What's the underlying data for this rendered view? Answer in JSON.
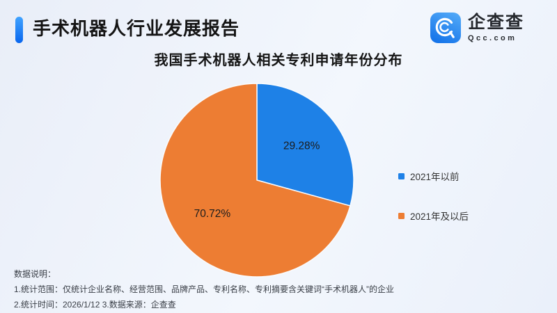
{
  "header": {
    "title": "手术机器人行业发展报告",
    "logo": {
      "brand": "企查查",
      "domain": "Qcc.com"
    }
  },
  "chart_data": {
    "type": "pie",
    "title": "我国手术机器人相关专利申请年份分布",
    "unit": "percent",
    "start_angle": "top",
    "direction": "clockwise",
    "legend_position": "right",
    "slices": [
      {
        "label": "2021年以前",
        "value": 29.28,
        "value_label": "29.28%",
        "color": "#1e81e7"
      },
      {
        "label": "2021年及以后",
        "value": 70.72,
        "value_label": "70.72%",
        "color": "#ed7d33"
      }
    ]
  },
  "footnote": {
    "heading": "数据说明：",
    "lines": [
      "1.统计范围：仅统计企业名称、经营范围、品牌产品、专利名称、专利摘要含关键词“手术机器人”的企业",
      "2.统计时间：2026/1/12  3.数据来源：企查查"
    ]
  },
  "colors": {
    "accent_blue": "#0a6cf0",
    "slice_blue": "#1e81e7",
    "slice_orange": "#ed7d33",
    "background": "#eef2fa"
  }
}
